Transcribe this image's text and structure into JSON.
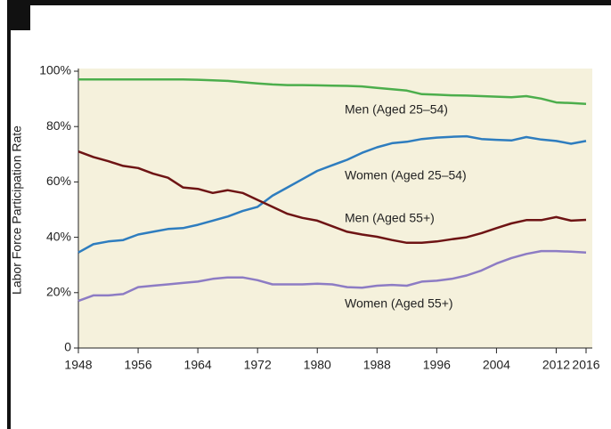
{
  "chart_data": {
    "type": "line",
    "y_label": "Labor Force Participation Rate",
    "x": [
      1948,
      1950,
      1952,
      1954,
      1956,
      1958,
      1960,
      1962,
      1964,
      1966,
      1968,
      1970,
      1972,
      1974,
      1976,
      1978,
      1980,
      1982,
      1984,
      1986,
      1988,
      1990,
      1992,
      1994,
      1996,
      1998,
      2000,
      2002,
      2004,
      2006,
      2008,
      2010,
      2012,
      2014,
      2016
    ],
    "series": [
      {
        "name": "Men (Aged 25–54)",
        "color": "#4cae4c",
        "values": [
          97,
          97,
          97,
          97,
          97,
          97,
          97,
          97,
          96.9,
          96.7,
          96.5,
          96,
          95.6,
          95.2,
          95,
          95,
          94.9,
          94.8,
          94.7,
          94.5,
          94,
          93.5,
          93,
          91.7,
          91.5,
          91.3,
          91.2,
          91,
          90.8,
          90.6,
          91,
          90.1,
          88.7,
          88.5,
          88.2
        ]
      },
      {
        "name": "Women (Aged 25–54)",
        "color": "#2e7dbf",
        "values": [
          34.5,
          37.5,
          38.5,
          39,
          41,
          42,
          43,
          43.3,
          44.5,
          46,
          47.5,
          49.5,
          51,
          55,
          58,
          61,
          64,
          66,
          68,
          70.5,
          72.5,
          74,
          74.5,
          75.5,
          76,
          76.3,
          76.5,
          75.5,
          75.2,
          75,
          76.2,
          75.3,
          74.8,
          73.8,
          74.8
        ]
      },
      {
        "name": "Men (Aged 55+)",
        "color": "#6e1414",
        "values": [
          71,
          69,
          67.5,
          65.8,
          65,
          63,
          61.5,
          58,
          57.5,
          56,
          57,
          56,
          53.5,
          51,
          48.5,
          47,
          46,
          44,
          42,
          41,
          40.2,
          39,
          38,
          38,
          38.5,
          39.3,
          40,
          41.5,
          43.3,
          45,
          46.2,
          46.2,
          47.3,
          46,
          46.3
        ]
      },
      {
        "name": "Women (Aged 55+)",
        "color": "#8d7cc4",
        "values": [
          17,
          19,
          19,
          19.5,
          22,
          22.5,
          23,
          23.5,
          24,
          25,
          25.5,
          25.5,
          24.5,
          23,
          23,
          23,
          23.2,
          23,
          22,
          21.8,
          22.5,
          22.8,
          22.5,
          24,
          24.3,
          25,
          26.2,
          28,
          30.5,
          32.5,
          34,
          35,
          35,
          34.8,
          34.5
        ]
      }
    ],
    "xlim": [
      1948,
      2016
    ],
    "xticks": [
      1948,
      1956,
      1964,
      1972,
      1980,
      1988,
      1996,
      2004,
      2012,
      2016
    ],
    "ylim": [
      0,
      100
    ],
    "yticks": [
      0,
      {
        "value": 20,
        "label": "20%"
      },
      {
        "value": 40,
        "label": "40%"
      },
      {
        "value": 60,
        "label": "60%"
      },
      {
        "value": 80,
        "label": "80%"
      },
      {
        "value": 100,
        "label": "100%"
      }
    ],
    "grid": false,
    "background": "#f5f1dc"
  }
}
